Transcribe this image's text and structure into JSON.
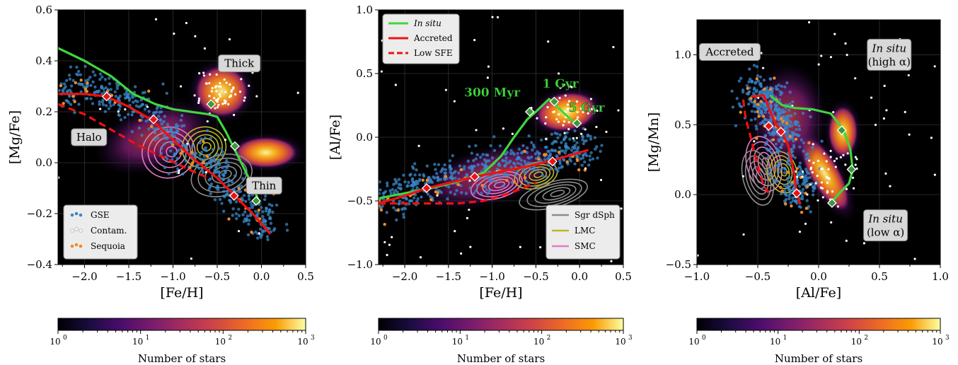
{
  "colors": {
    "in_situ": "#3fd63f",
    "accreted": "#ee1111",
    "gse": "#3a87c8",
    "contam": "#ffffff",
    "sequoia": "#f08a24",
    "sgr": "#8c8c8c",
    "lmc": "#b9b92a",
    "smc": "#e07bc4",
    "background": "#000000"
  },
  "colorbar": {
    "label": "Number of stars",
    "ticks": [
      "10",
      "10",
      "10",
      "10"
    ],
    "exps": [
      "0",
      "1",
      "2",
      "3"
    ],
    "cmap": "inferno",
    "log": true
  },
  "chart_data": [
    {
      "type": "scatter",
      "panel": "left",
      "xlabel": "[Fe/H]",
      "ylabel": "[Mg/Fe]",
      "xlim": [
        -2.3,
        0.5
      ],
      "ylim": [
        -0.4,
        0.6
      ],
      "xticks": [
        "−2.0",
        "−1.5",
        "−1.0",
        "−0.5",
        "0.0",
        "0.5"
      ],
      "xtick_vals": [
        -2.0,
        -1.5,
        -1.0,
        -0.5,
        0.0,
        0.5
      ],
      "yticks": [
        "−0.4",
        "−0.2",
        "0.0",
        "0.2",
        "0.4",
        "0.6"
      ],
      "ytick_vals": [
        -0.4,
        -0.2,
        0.0,
        0.2,
        0.4,
        0.6
      ],
      "annotations": [
        {
          "text": "Thick",
          "x": -0.25,
          "y": 0.39
        },
        {
          "text": "Halo",
          "x": -1.95,
          "y": 0.1
        },
        {
          "text": "Thin",
          "x": 0.03,
          "y": -0.09
        }
      ],
      "legend": {
        "position": "lower-left",
        "entries": [
          "GSE",
          "Contam.",
          "Sequoia"
        ]
      },
      "series": [
        {
          "name": "In situ",
          "style": "solid",
          "color": "in_situ",
          "x": [
            -2.3,
            -2.0,
            -1.7,
            -1.45,
            -1.2,
            -1.0,
            -0.8,
            -0.6,
            -0.5,
            -0.4,
            -0.3,
            -0.2,
            -0.1,
            -0.02
          ],
          "y": [
            0.45,
            0.4,
            0.34,
            0.27,
            0.23,
            0.21,
            0.2,
            0.19,
            0.18,
            0.12,
            0.05,
            -0.02,
            -0.09,
            -0.16
          ]
        },
        {
          "name": "Accreted",
          "style": "solid",
          "color": "accreted",
          "x": [
            -2.3,
            -2.0,
            -1.75,
            -1.5,
            -1.25,
            -1.0,
            -0.75,
            -0.5,
            -0.3,
            -0.1,
            0.1
          ],
          "y": [
            0.27,
            0.27,
            0.26,
            0.22,
            0.17,
            0.09,
            0.01,
            -0.06,
            -0.13,
            -0.2,
            -0.28
          ]
        },
        {
          "name": "Low SFE",
          "style": "dashed",
          "color": "accreted",
          "x": [
            -2.3,
            -2.0,
            -1.7,
            -1.4,
            -1.1,
            -0.8,
            -0.6
          ],
          "y": [
            0.23,
            0.19,
            0.13,
            0.07,
            0.02,
            -0.03,
            -0.06
          ]
        }
      ],
      "markers": [
        {
          "series": "In situ",
          "x": [
            -0.57,
            -0.3,
            -0.06
          ],
          "y": [
            0.23,
            0.065,
            -0.15
          ]
        },
        {
          "series": "Accreted",
          "x": [
            -1.75,
            -1.22,
            -0.31
          ],
          "y": [
            0.26,
            0.17,
            -0.13
          ]
        }
      ],
      "contours": [
        {
          "name": "SMC",
          "cx": -1.05,
          "cy": 0.04,
          "rx": 0.3,
          "ry": 0.1
        },
        {
          "name": "LMC",
          "cx": -0.65,
          "cy": 0.06,
          "rx": 0.25,
          "ry": 0.08
        },
        {
          "name": "Sgr dSph",
          "cx": -0.45,
          "cy": -0.05,
          "rx": 0.35,
          "ry": 0.08
        }
      ],
      "density": [
        {
          "cx": -0.45,
          "cy": 0.28,
          "rx": 0.3,
          "ry": 0.1,
          "rot": 10,
          "level": 0.9
        },
        {
          "cx": 0.05,
          "cy": 0.04,
          "rx": 0.35,
          "ry": 0.06,
          "rot": 0,
          "level": 0.95
        },
        {
          "cx": -1.2,
          "cy": 0.1,
          "rx": 0.55,
          "ry": 0.1,
          "rot": -20,
          "level": 0.4
        }
      ]
    },
    {
      "type": "scatter",
      "panel": "middle",
      "xlabel": "[Fe/H]",
      "ylabel": "[Al/Fe]",
      "xlim": [
        -2.3,
        0.5
      ],
      "ylim": [
        -1.0,
        1.0
      ],
      "xticks": [
        "−2.0",
        "−1.5",
        "−1.0",
        "−0.5",
        "0.0",
        "0.5"
      ],
      "xtick_vals": [
        -2.0,
        -1.5,
        -1.0,
        -0.5,
        0.0,
        0.5
      ],
      "yticks": [
        "−1.0",
        "−0.5",
        "0.0",
        "0.5",
        "1.0"
      ],
      "ytick_vals": [
        -1.0,
        -0.5,
        0.0,
        0.5,
        1.0
      ],
      "annotations": [
        {
          "text": "300 Myr",
          "x": -1.0,
          "y": 0.32,
          "kind": "age"
        },
        {
          "text": "1 Gyr",
          "x": -0.22,
          "y": 0.39,
          "kind": "age"
        },
        {
          "text": "5 Gyr",
          "x": 0.08,
          "y": 0.2,
          "kind": "age"
        }
      ],
      "legend_top": {
        "position": "upper-left",
        "entries": [
          "In situ",
          "Accreted",
          "Low SFE"
        ]
      },
      "legend_bottom": {
        "position": "lower-right",
        "entries": [
          "Sgr dSph",
          "LMC",
          "SMC"
        ]
      },
      "series": [
        {
          "name": "In situ",
          "style": "solid",
          "color": "in_situ",
          "x": [
            -2.3,
            -2.0,
            -1.7,
            -1.4,
            -1.1,
            -0.9,
            -0.75,
            -0.6,
            -0.5,
            -0.35,
            -0.3,
            -0.15,
            -0.05
          ],
          "y": [
            -0.48,
            -0.44,
            -0.4,
            -0.35,
            -0.28,
            -0.15,
            0.0,
            0.14,
            0.2,
            0.3,
            0.27,
            0.17,
            0.11
          ]
        },
        {
          "name": "Accreted",
          "style": "solid",
          "color": "accreted",
          "x": [
            -2.3,
            -2.0,
            -1.75,
            -1.5,
            -1.2,
            -0.9,
            -0.6,
            -0.3,
            -0.1,
            0.1
          ],
          "y": [
            -0.52,
            -0.46,
            -0.4,
            -0.36,
            -0.31,
            -0.27,
            -0.23,
            -0.18,
            -0.14,
            -0.1
          ]
        },
        {
          "name": "Low SFE",
          "style": "dashed",
          "color": "accreted",
          "x": [
            -2.3,
            -2.0,
            -1.7,
            -1.4,
            -1.1,
            -0.8,
            -0.5
          ],
          "y": [
            -0.52,
            -0.52,
            -0.52,
            -0.52,
            -0.5,
            -0.44,
            -0.36
          ]
        }
      ],
      "markers": [
        {
          "series": "In situ",
          "x": [
            -0.57,
            -0.29,
            -0.03
          ],
          "y": [
            0.2,
            0.28,
            0.11
          ]
        },
        {
          "series": "Accreted",
          "x": [
            -1.75,
            -1.2,
            -0.31
          ],
          "y": [
            -0.4,
            -0.31,
            -0.19
          ]
        }
      ],
      "contours": [
        {
          "name": "SMC",
          "cx": -0.95,
          "cy": -0.38,
          "rx": 0.3,
          "ry": 0.1
        },
        {
          "name": "LMC",
          "cx": -0.5,
          "cy": -0.3,
          "rx": 0.25,
          "ry": 0.1
        },
        {
          "name": "Sgr dSph",
          "cx": -0.3,
          "cy": -0.45,
          "rx": 0.4,
          "ry": 0.1
        }
      ],
      "density": [
        {
          "cx": -0.15,
          "cy": 0.2,
          "rx": 0.35,
          "ry": 0.15,
          "rot": -10,
          "level": 0.95
        },
        {
          "cx": -1.0,
          "cy": -0.3,
          "rx": 0.7,
          "ry": 0.18,
          "rot": -15,
          "level": 0.45
        }
      ]
    },
    {
      "type": "scatter",
      "panel": "right",
      "xlabel": "[Al/Fe]",
      "ylabel": "[Mg/Mn]",
      "xlim": [
        -1.0,
        1.0
      ],
      "ylim": [
        -0.5,
        1.25
      ],
      "xticks": [
        "−1.0",
        "−0.5",
        "0.0",
        "0.5",
        "1.0"
      ],
      "xtick_vals": [
        -1.0,
        -0.5,
        0.0,
        0.5,
        1.0
      ],
      "yticks": [
        "−0.5",
        "0.0",
        "0.5",
        "1.0"
      ],
      "ytick_vals": [
        -0.5,
        0.0,
        0.5,
        1.0
      ],
      "annotations": [
        {
          "text": "Accreted",
          "x": -0.73,
          "y": 1.02
        },
        {
          "text": "In situ",
          "x2": "(high α)",
          "x": 0.58,
          "y": 1.0
        },
        {
          "text": "In situ",
          "x2": "(low α)",
          "x": 0.55,
          "y": -0.22
        }
      ],
      "series": [
        {
          "name": "In situ",
          "style": "solid",
          "color": "in_situ",
          "x": [
            -0.4,
            -0.3,
            -0.2,
            -0.05,
            0.1,
            0.2,
            0.26,
            0.28,
            0.25,
            0.18,
            0.11
          ],
          "y": [
            0.71,
            0.64,
            0.62,
            0.61,
            0.58,
            0.47,
            0.33,
            0.18,
            0.08,
            0.02,
            -0.05
          ]
        },
        {
          "name": "Accreted",
          "style": "solid",
          "color": "accreted",
          "x": [
            -0.55,
            -0.45,
            -0.4,
            -0.35,
            -0.3,
            -0.25,
            -0.2,
            -0.18,
            -0.15
          ],
          "y": [
            0.7,
            0.71,
            0.6,
            0.5,
            0.45,
            0.35,
            0.15,
            0.01,
            -0.07
          ]
        },
        {
          "name": "Low SFE",
          "style": "dashed",
          "color": "accreted",
          "x": [
            -0.62,
            -0.6,
            -0.55,
            -0.5,
            -0.45,
            -0.4
          ],
          "y": [
            0.68,
            0.55,
            0.38,
            0.2,
            0.06,
            0.0
          ]
        }
      ],
      "markers": [
        {
          "series": "In situ",
          "x": [
            0.19,
            0.27,
            0.11
          ],
          "y": [
            0.46,
            0.18,
            -0.06
          ]
        },
        {
          "series": "Accreted",
          "x": [
            -0.41,
            -0.31,
            -0.18
          ],
          "y": [
            0.49,
            0.45,
            0.01
          ]
        }
      ],
      "contours": [
        {
          "name": "SMC",
          "cx": -0.45,
          "cy": 0.22,
          "rx": 0.14,
          "ry": 0.2
        },
        {
          "name": "LMC",
          "cx": -0.3,
          "cy": 0.16,
          "rx": 0.12,
          "ry": 0.15
        },
        {
          "name": "Sgr dSph",
          "cx": -0.5,
          "cy": 0.12,
          "rx": 0.12,
          "ry": 0.2
        }
      ],
      "density": [
        {
          "cx": 0.05,
          "cy": 0.15,
          "rx": 0.12,
          "ry": 0.3,
          "rot": -30,
          "level": 0.9
        },
        {
          "cx": 0.2,
          "cy": 0.45,
          "rx": 0.12,
          "ry": 0.18,
          "rot": 0,
          "level": 0.9
        },
        {
          "cx": -0.25,
          "cy": 0.55,
          "rx": 0.25,
          "ry": 0.3,
          "rot": 0,
          "level": 0.45
        }
      ]
    }
  ]
}
